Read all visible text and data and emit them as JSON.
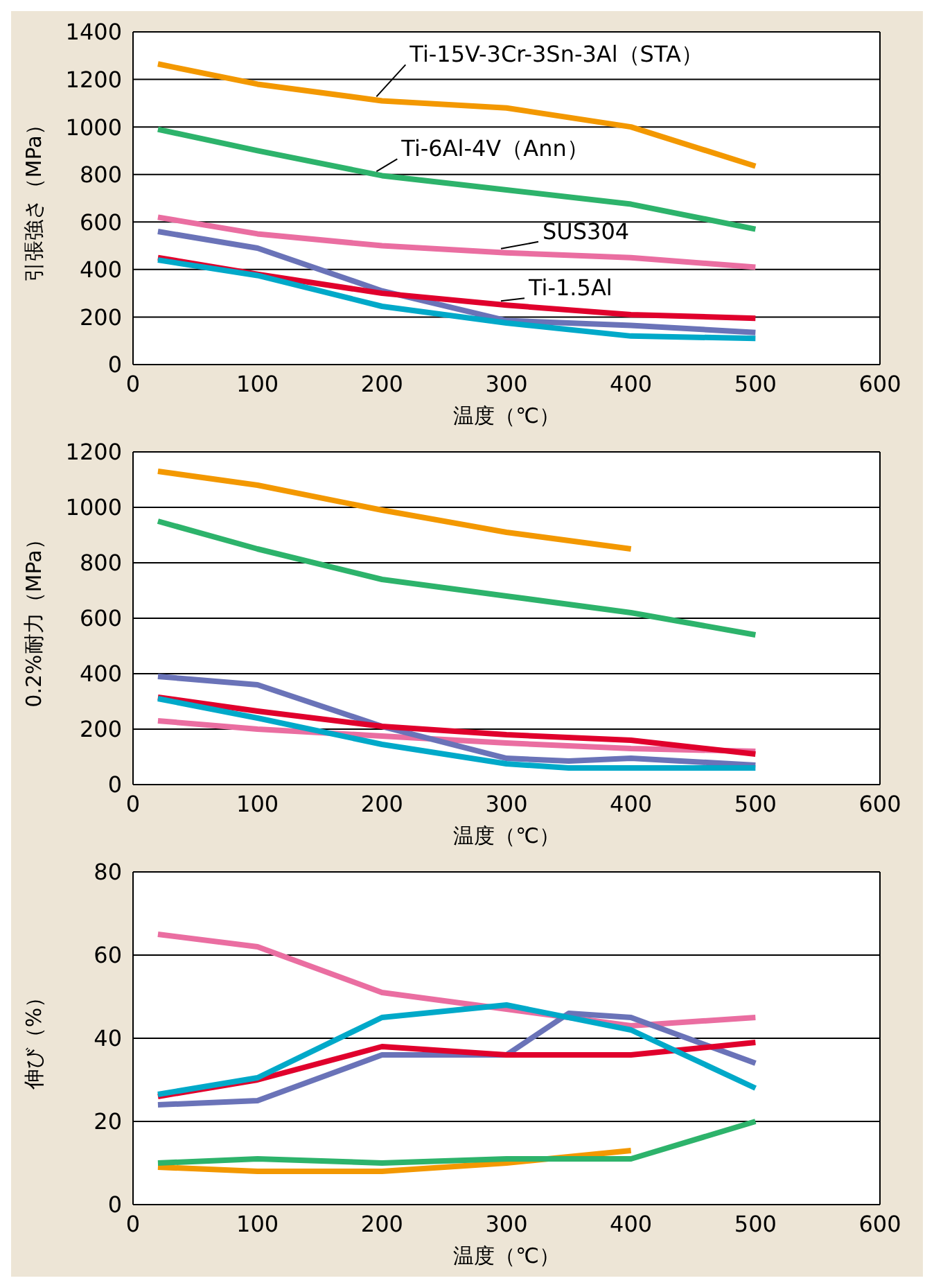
{
  "chart_data": [
    {
      "type": "line",
      "ylabel": "引張強さ（MPa）",
      "xlabel": "温度（℃）",
      "xlim": [
        0,
        600
      ],
      "xticks": [
        0,
        100,
        200,
        300,
        400,
        500,
        600
      ],
      "ylim": [
        0,
        1400
      ],
      "yticks": [
        0,
        200,
        400,
        600,
        800,
        1000,
        1200,
        1400
      ],
      "grid": "y",
      "legend": false,
      "marker": "none",
      "line_style": "solid",
      "series": [
        {
          "name": "Ti-15V-3Cr-3Sn-3Al（STA）",
          "color": "#f39800",
          "x": [
            20,
            100,
            200,
            300,
            400,
            500
          ],
          "values": [
            1265,
            1180,
            1110,
            1080,
            1000,
            835
          ]
        },
        {
          "name": "Ti-6Al-4V（Ann）",
          "color": "#2db36b",
          "x": [
            20,
            100,
            200,
            300,
            400,
            500
          ],
          "values": [
            990,
            900,
            795,
            735,
            675,
            570
          ]
        },
        {
          "name": "SUS304",
          "color": "#ea6ea1",
          "x": [
            20,
            100,
            200,
            300,
            400,
            500
          ],
          "values": [
            620,
            550,
            500,
            470,
            450,
            410
          ]
        },
        {
          "color": "#6a73b8",
          "x": [
            20,
            100,
            200,
            300,
            400,
            500
          ],
          "values": [
            560,
            490,
            310,
            185,
            165,
            135
          ]
        },
        {
          "name": "Ti-1.5Al",
          "color": "#e0002c",
          "x": [
            20,
            100,
            200,
            300,
            400,
            500
          ],
          "values": [
            450,
            380,
            300,
            250,
            210,
            195
          ]
        },
        {
          "color": "#00a9c9",
          "x": [
            20,
            100,
            200,
            300,
            400,
            500
          ],
          "values": [
            440,
            375,
            245,
            175,
            120,
            110
          ]
        }
      ]
    },
    {
      "type": "line",
      "ylabel": "0.2%耐力（MPa）",
      "xlabel": "温度（℃）",
      "xlim": [
        0,
        600
      ],
      "xticks": [
        0,
        100,
        200,
        300,
        400,
        500,
        600
      ],
      "ylim": [
        0,
        1200
      ],
      "yticks": [
        0,
        200,
        400,
        600,
        800,
        1000,
        1200
      ],
      "grid": "y",
      "legend": false,
      "marker": "none",
      "line_style": "solid",
      "series": [
        {
          "color": "#f39800",
          "x": [
            20,
            100,
            200,
            300,
            400
          ],
          "values": [
            1130,
            1080,
            990,
            910,
            850
          ]
        },
        {
          "color": "#2db36b",
          "x": [
            20,
            100,
            200,
            300,
            400,
            500
          ],
          "values": [
            950,
            850,
            740,
            680,
            620,
            540
          ]
        },
        {
          "color": "#ea6ea1",
          "x": [
            20,
            100,
            200,
            300,
            400,
            500
          ],
          "values": [
            230,
            200,
            175,
            150,
            130,
            120
          ]
        },
        {
          "color": "#6a73b8",
          "x": [
            20,
            100,
            200,
            300,
            350,
            400,
            500
          ],
          "values": [
            390,
            360,
            210,
            95,
            85,
            95,
            70
          ]
        },
        {
          "color": "#e0002c",
          "x": [
            20,
            100,
            200,
            300,
            400,
            500
          ],
          "values": [
            315,
            265,
            210,
            180,
            160,
            110
          ]
        },
        {
          "color": "#00a9c9",
          "x": [
            20,
            100,
            200,
            300,
            350,
            400,
            500
          ],
          "values": [
            310,
            240,
            145,
            75,
            60,
            60,
            60
          ]
        }
      ]
    },
    {
      "type": "line",
      "ylabel": "伸び（%）",
      "xlabel": "温度（℃）",
      "xlim": [
        0,
        600
      ],
      "xticks": [
        0,
        100,
        200,
        300,
        400,
        500,
        600
      ],
      "ylim": [
        0,
        80
      ],
      "yticks": [
        0,
        20,
        40,
        60,
        80
      ],
      "grid": "y",
      "legend": false,
      "marker": "none",
      "line_style": "solid",
      "series": [
        {
          "color": "#f39800",
          "x": [
            20,
            100,
            200,
            300,
            400
          ],
          "values": [
            9,
            8,
            8,
            10,
            13
          ]
        },
        {
          "color": "#2db36b",
          "x": [
            20,
            100,
            200,
            300,
            400,
            500
          ],
          "values": [
            10,
            11,
            10,
            11,
            11,
            20
          ]
        },
        {
          "color": "#ea6ea1",
          "x": [
            20,
            100,
            200,
            300,
            400,
            500
          ],
          "values": [
            65,
            62,
            51,
            47,
            43,
            45
          ]
        },
        {
          "color": "#6a73b8",
          "x": [
            20,
            100,
            200,
            300,
            350,
            400,
            500
          ],
          "values": [
            24,
            25,
            36,
            36,
            46,
            45,
            34
          ]
        },
        {
          "color": "#e0002c",
          "x": [
            20,
            100,
            200,
            300,
            400,
            500
          ],
          "values": [
            26,
            30,
            38,
            36,
            36,
            39
          ]
        },
        {
          "color": "#00a9c9",
          "x": [
            20,
            100,
            200,
            300,
            400,
            500
          ],
          "values": [
            26.5,
            30.5,
            45,
            48,
            42,
            28
          ]
        }
      ]
    }
  ]
}
